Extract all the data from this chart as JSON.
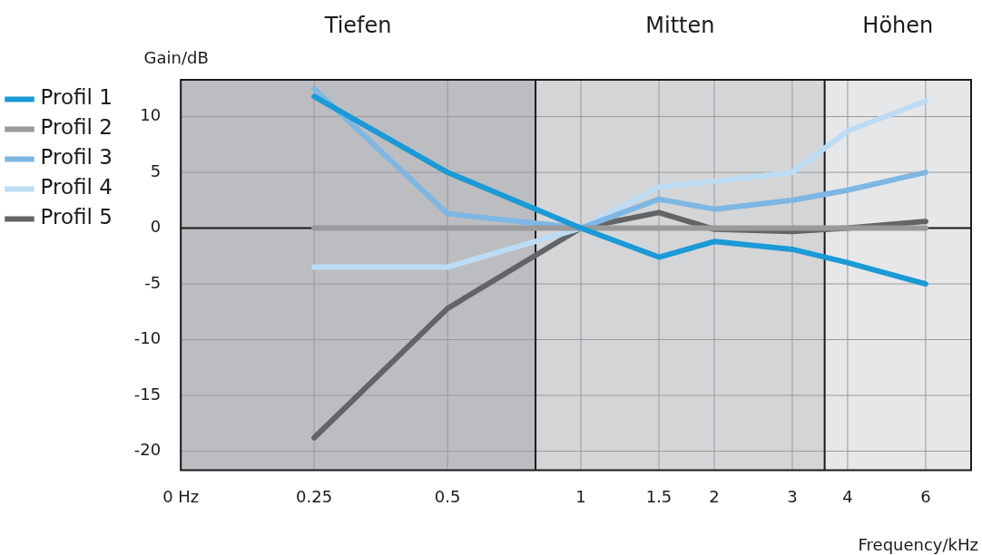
{
  "chart_data": {
    "type": "line",
    "xlabel": "Frequency/kHz",
    "ylabel": "Gain/dB",
    "x": [
      0.25,
      0.5,
      1,
      1.5,
      2,
      3,
      4,
      6
    ],
    "series": [
      {
        "name": "Profil 1",
        "color": "#1a9ad6",
        "values": [
          11.8,
          5,
          0,
          -2.6,
          -1.2,
          -1.9,
          -3.1,
          -5.0
        ]
      },
      {
        "name": "Profil 2",
        "color": "#999a9c",
        "values": [
          0,
          0,
          0,
          0,
          0,
          0,
          0,
          0
        ]
      },
      {
        "name": "Profil 3",
        "color": "#7db7e4",
        "values": [
          12.5,
          1.3,
          0,
          2.6,
          1.7,
          2.5,
          3.4,
          5.0
        ]
      },
      {
        "name": "Profil 4",
        "color": "#bcdcf4",
        "values": [
          -3.5,
          -3.5,
          0,
          3.7,
          4.2,
          5.0,
          8.7,
          11.4
        ]
      },
      {
        "name": "Profil 5",
        "color": "#636466",
        "values": [
          -18.8,
          -7.2,
          0,
          1.4,
          -0.1,
          -0.3,
          0,
          0.6
        ]
      }
    ],
    "log": "x",
    "xlim": [
      0.125,
      7.6
    ],
    "xticks": [
      {
        "value": 0.125,
        "label": "0 Hz"
      },
      0.25,
      0.5,
      1,
      1.5,
      2,
      3,
      4,
      6
    ],
    "ylim": [
      -21.7,
      13.3
    ],
    "yticks": [
      -20,
      -15,
      -10,
      -5,
      0,
      5,
      10
    ],
    "bands": [
      {
        "axis": "x",
        "from": 0.125,
        "to": 0.79,
        "label": "Tiefen",
        "color": "#bcbdc0"
      },
      {
        "axis": "x",
        "from": 0.79,
        "to": 3.55,
        "label": "Mitten",
        "color": "#d4d5d7"
      },
      {
        "axis": "x",
        "from": 3.55,
        "to": 7.6,
        "label": "Höhen",
        "color": "#e6e7e8"
      }
    ],
    "ref_lines": [
      {
        "axis": "y",
        "value": 0,
        "color": "#1a1a1a"
      }
    ],
    "grid": true,
    "legend": "left",
    "marker": "none",
    "line_style": "solid"
  }
}
